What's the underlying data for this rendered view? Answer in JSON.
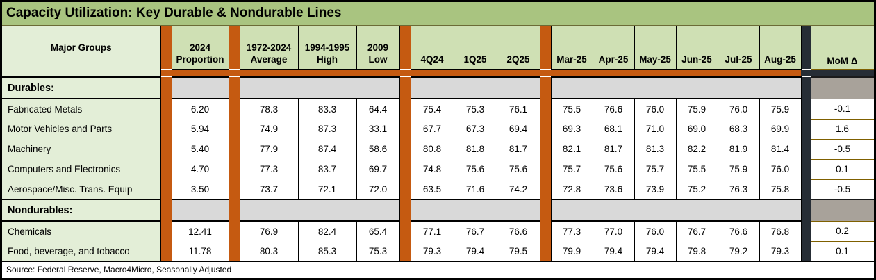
{
  "title": "Capacity Utilization: Key Durable & Nondurable Lines",
  "source": "Source: Federal Reserve, Macro4Micro, Seasonally Adjusted",
  "colors": {
    "title_green": "#a9c480",
    "header_green": "#cfe0b4",
    "label_green": "#e3eed7",
    "orange_separator": "#c55a11",
    "dark_bar": "#262d35",
    "gray_separator": "#d9d9d9",
    "mom_gray_separator": "#a8a29a",
    "mom_border_gold": "#7f6000"
  },
  "table": {
    "header": {
      "major_groups": "Major Groups",
      "proportion": [
        "2024",
        "Proportion"
      ],
      "average": [
        "1972-2024",
        "Average"
      ],
      "high": [
        "1994-1995",
        "High"
      ],
      "low": [
        "2009",
        "Low"
      ],
      "quarters": [
        "4Q24",
        "1Q25",
        "2Q25"
      ],
      "months": [
        "Mar-25",
        "Apr-25",
        "May-25",
        "Jun-25",
        "Jul-25",
        "Aug-25"
      ],
      "mom": "MoM Δ"
    },
    "groups": [
      {
        "label": "Durables:",
        "rows": [
          {
            "label": "Fabricated Metals",
            "proportion": "6.20",
            "average": "78.3",
            "high": "83.3",
            "low": "64.4",
            "quarters": [
              "75.4",
              "75.3",
              "76.1"
            ],
            "months": [
              "75.5",
              "76.6",
              "76.0",
              "75.9",
              "76.0",
              "75.9"
            ],
            "mom": "-0.1"
          },
          {
            "label": "Motor Vehicles and Parts",
            "proportion": "5.94",
            "average": "74.9",
            "high": "87.3",
            "low": "33.1",
            "quarters": [
              "67.7",
              "67.3",
              "69.4"
            ],
            "months": [
              "69.3",
              "68.1",
              "71.0",
              "69.0",
              "68.3",
              "69.9"
            ],
            "mom": "1.6"
          },
          {
            "label": "Machinery",
            "proportion": "5.40",
            "average": "77.9",
            "high": "87.4",
            "low": "58.6",
            "quarters": [
              "80.8",
              "81.8",
              "81.7"
            ],
            "months": [
              "82.1",
              "81.7",
              "81.3",
              "82.2",
              "81.9",
              "81.4"
            ],
            "mom": "-0.5"
          },
          {
            "label": "Computers and Electronics",
            "proportion": "4.70",
            "average": "77.3",
            "high": "83.7",
            "low": "69.7",
            "quarters": [
              "74.8",
              "75.6",
              "75.6"
            ],
            "months": [
              "75.7",
              "75.6",
              "75.7",
              "75.5",
              "75.9",
              "76.0"
            ],
            "mom": "0.1"
          },
          {
            "label": "Aerospace/Misc. Trans. Equip",
            "proportion": "3.50",
            "average": "73.7",
            "high": "72.1",
            "low": "72.0",
            "quarters": [
              "63.5",
              "71.6",
              "74.2"
            ],
            "months": [
              "72.8",
              "73.6",
              "73.9",
              "75.2",
              "76.3",
              "75.8"
            ],
            "mom": "-0.5"
          }
        ]
      },
      {
        "label": "Nondurables:",
        "rows": [
          {
            "label": "Chemicals",
            "proportion": "12.41",
            "average": "76.9",
            "high": "82.4",
            "low": "65.4",
            "quarters": [
              "77.1",
              "76.7",
              "76.6"
            ],
            "months": [
              "77.3",
              "77.0",
              "76.0",
              "76.7",
              "76.6",
              "76.8"
            ],
            "mom": "0.2"
          },
          {
            "label": "Food, beverage, and tobacco",
            "proportion": "11.78",
            "average": "80.3",
            "high": "85.3",
            "low": "75.3",
            "quarters": [
              "79.3",
              "79.4",
              "79.5"
            ],
            "months": [
              "79.9",
              "79.4",
              "79.4",
              "79.8",
              "79.2",
              "79.3"
            ],
            "mom": "0.1"
          }
        ]
      }
    ]
  },
  "chart_data": {
    "type": "table",
    "title": "Capacity Utilization: Key Durable & Nondurable Lines",
    "columns": [
      "Major Groups",
      "2024 Proportion",
      "1972-2024 Average",
      "1994-1995 High",
      "2009 Low",
      "4Q24",
      "1Q25",
      "2Q25",
      "Mar-25",
      "Apr-25",
      "May-25",
      "Jun-25",
      "Jul-25",
      "Aug-25",
      "MoM Δ"
    ],
    "sections": [
      {
        "name": "Durables:",
        "rows": [
          [
            "Fabricated Metals",
            6.2,
            78.3,
            83.3,
            64.4,
            75.4,
            75.3,
            76.1,
            75.5,
            76.6,
            76.0,
            75.9,
            76.0,
            75.9,
            -0.1
          ],
          [
            "Motor Vehicles and Parts",
            5.94,
            74.9,
            87.3,
            33.1,
            67.7,
            67.3,
            69.4,
            69.3,
            68.1,
            71.0,
            69.0,
            68.3,
            69.9,
            1.6
          ],
          [
            "Machinery",
            5.4,
            77.9,
            87.4,
            58.6,
            80.8,
            81.8,
            81.7,
            82.1,
            81.7,
            81.3,
            82.2,
            81.9,
            81.4,
            -0.5
          ],
          [
            "Computers and Electronics",
            4.7,
            77.3,
            83.7,
            69.7,
            74.8,
            75.6,
            75.6,
            75.7,
            75.6,
            75.7,
            75.5,
            75.9,
            76.0,
            0.1
          ],
          [
            "Aerospace/Misc. Trans. Equip",
            3.5,
            73.7,
            72.1,
            72.0,
            63.5,
            71.6,
            74.2,
            72.8,
            73.6,
            73.9,
            75.2,
            76.3,
            75.8,
            -0.5
          ]
        ]
      },
      {
        "name": "Nondurables:",
        "rows": [
          [
            "Chemicals",
            12.41,
            76.9,
            82.4,
            65.4,
            77.1,
            76.7,
            76.6,
            77.3,
            77.0,
            76.0,
            76.7,
            76.6,
            76.8,
            0.2
          ],
          [
            "Food, beverage, and tobacco",
            11.78,
            80.3,
            85.3,
            75.3,
            79.3,
            79.4,
            79.5,
            79.9,
            79.4,
            79.4,
            79.8,
            79.2,
            79.3,
            0.1
          ]
        ]
      }
    ],
    "source": "Source: Federal Reserve, Macro4Micro, Seasonally Adjusted"
  }
}
